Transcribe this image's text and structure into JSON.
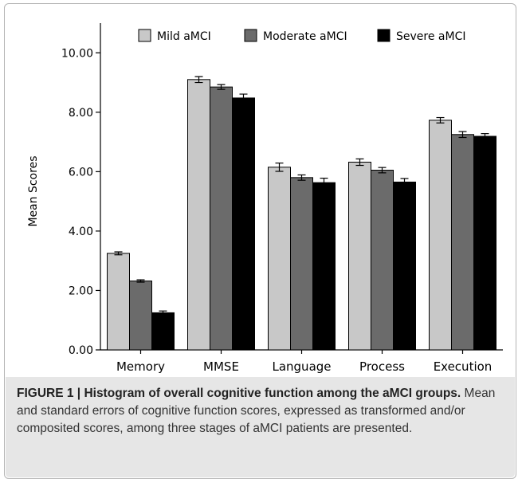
{
  "chart_data": {
    "type": "bar",
    "categories": [
      "Memory",
      "MMSE",
      "Language",
      "Process",
      "Execution"
    ],
    "series": [
      {
        "name": "Mild aMCI",
        "color": "#c8c8c8",
        "values": [
          3.25,
          9.1,
          6.15,
          6.32,
          7.73
        ],
        "errors": [
          0.05,
          0.1,
          0.14,
          0.11,
          0.09
        ]
      },
      {
        "name": "Moderate aMCI",
        "color": "#6b6b6b",
        "values": [
          2.32,
          8.85,
          5.8,
          6.05,
          7.25
        ],
        "errors": [
          0.04,
          0.08,
          0.09,
          0.09,
          0.1
        ]
      },
      {
        "name": "Severe aMCI",
        "color": "#000000",
        "values": [
          1.25,
          8.48,
          5.63,
          5.65,
          7.19
        ],
        "errors": [
          0.06,
          0.13,
          0.15,
          0.12,
          0.09
        ]
      }
    ],
    "yticks": [
      "0.00",
      "2.00",
      "4.00",
      "6.00",
      "8.00",
      "10.00"
    ],
    "ylim": [
      0,
      11
    ],
    "ylabel": "Mean Scores",
    "xlabel": "",
    "legend_position": "top",
    "grid": false
  },
  "caption": {
    "label": "FIGURE 1 | ",
    "title": "Histogram of overall cognitive function among the aMCI groups.",
    "body": " Mean and standard errors of cognitive function scores, expressed as transformed and/or composited scores, among three stages of aMCI patients are presented."
  }
}
